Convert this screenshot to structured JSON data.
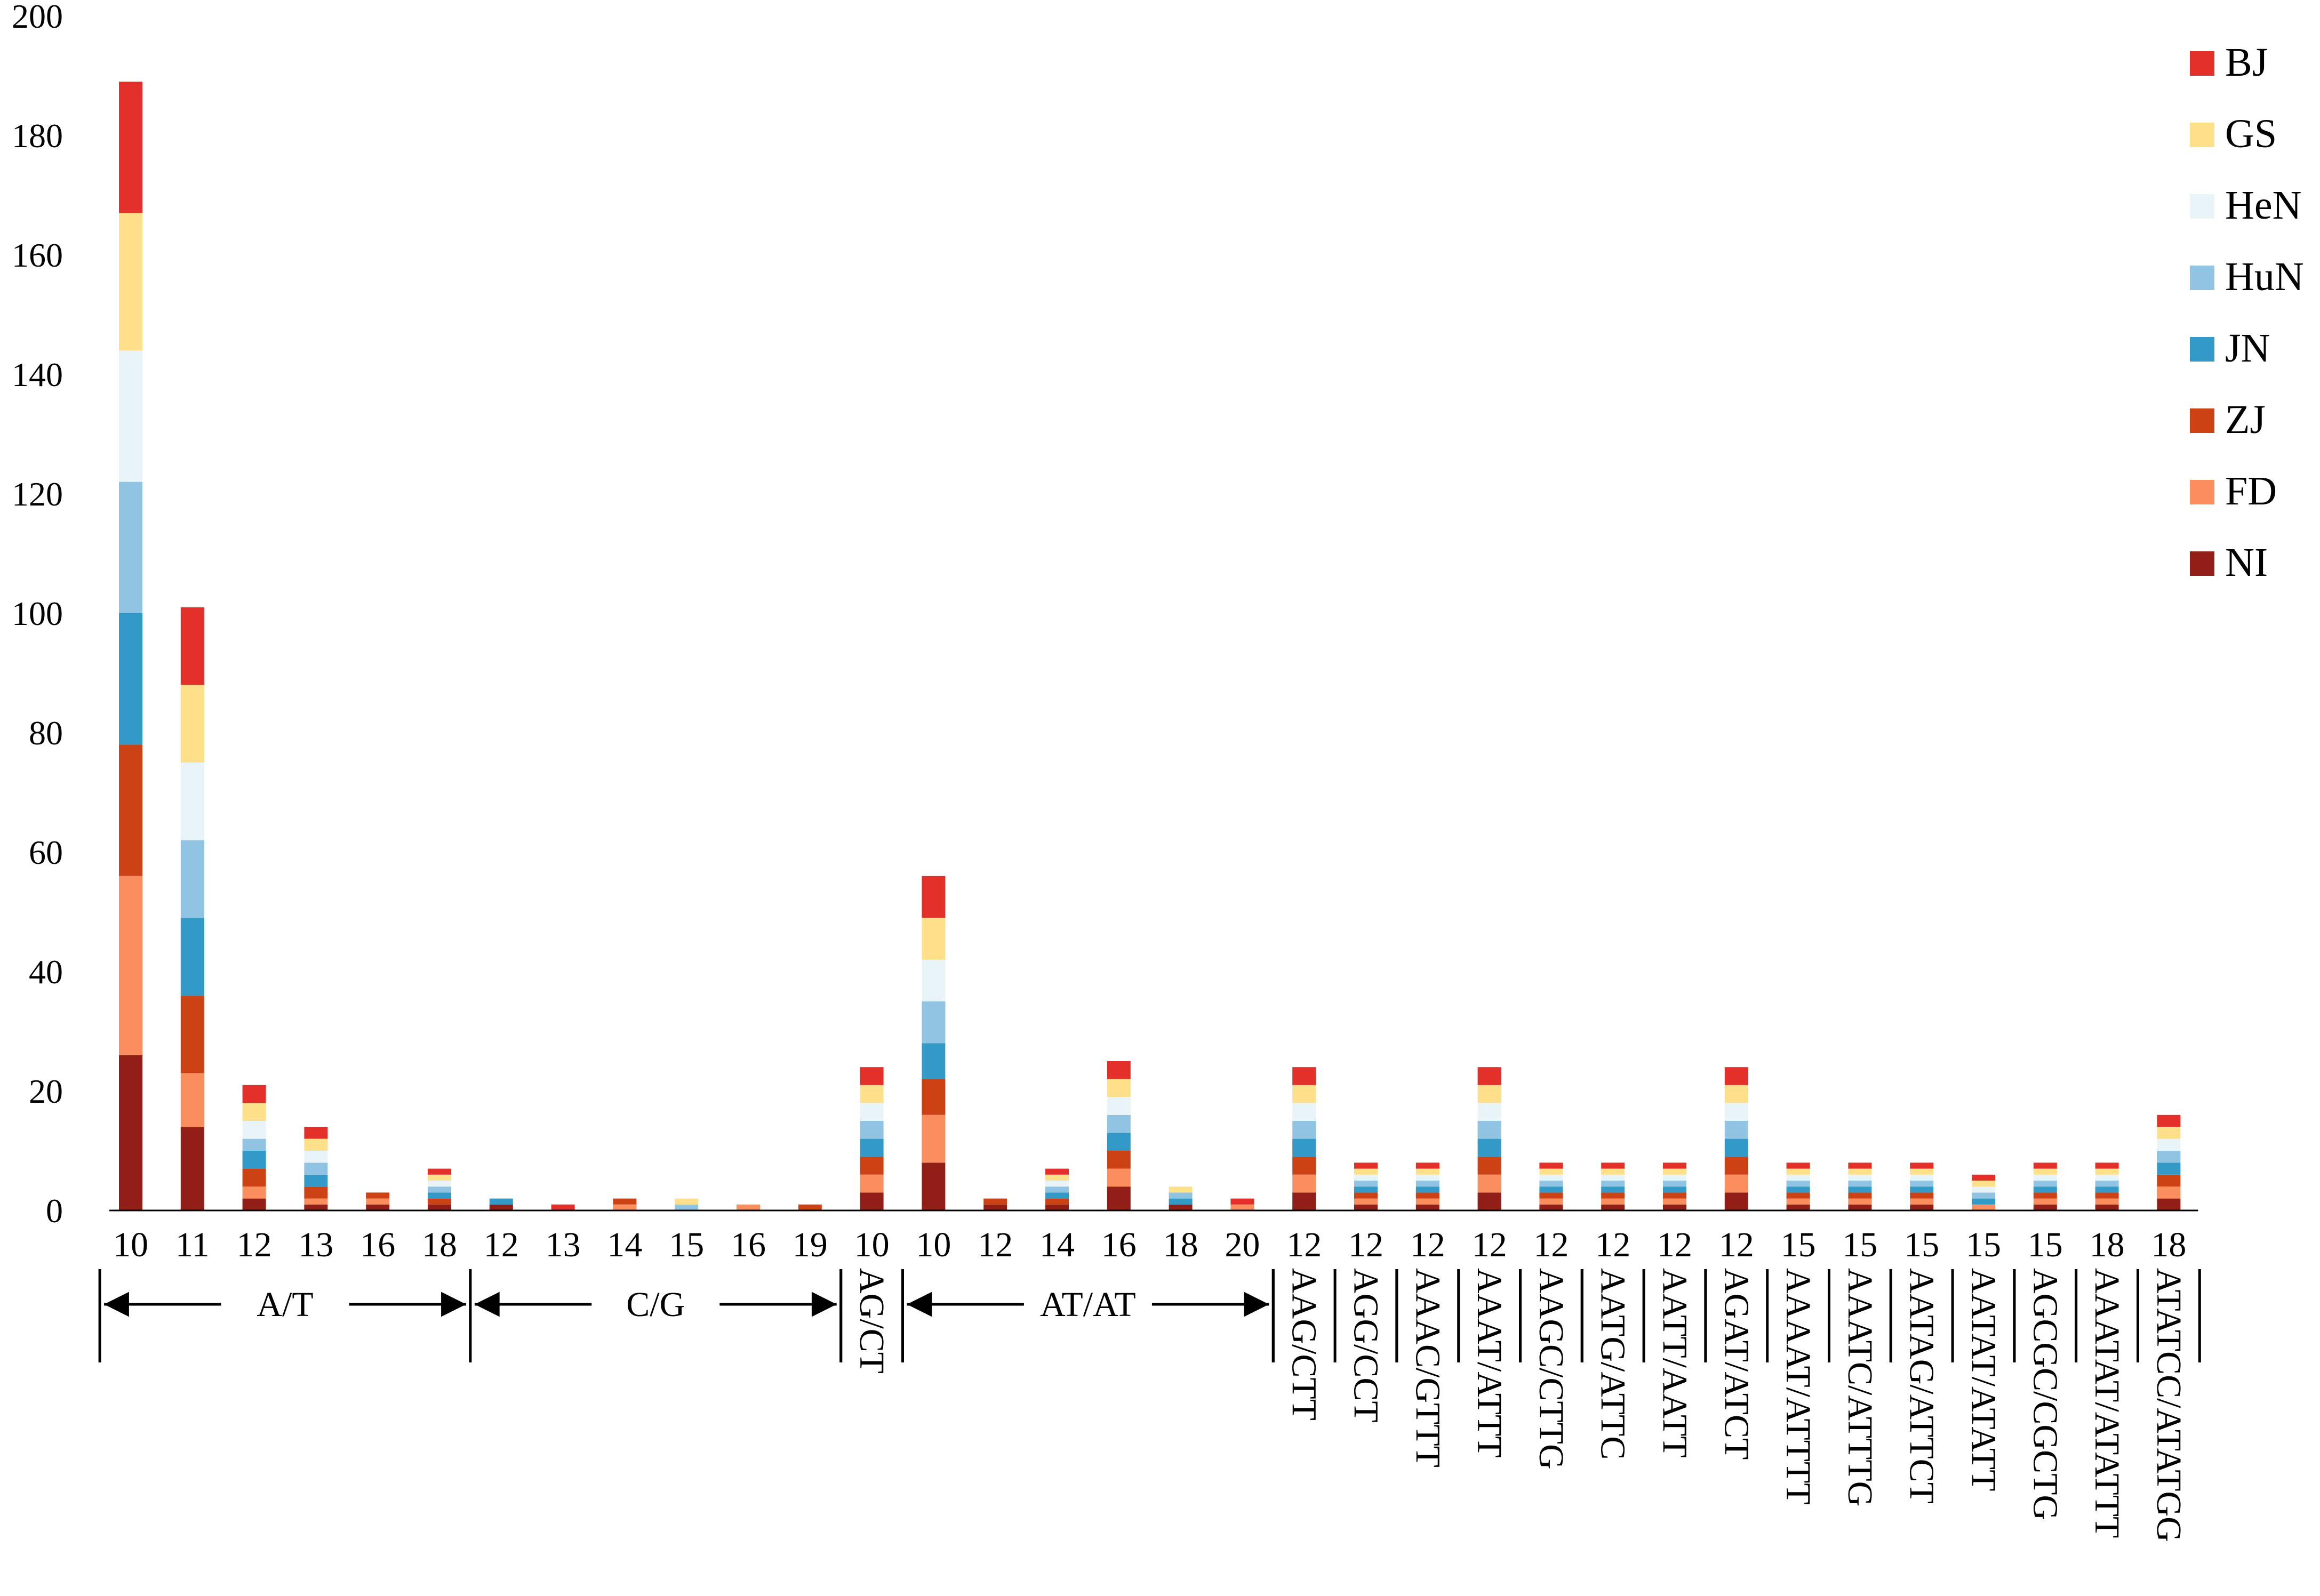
{
  "chart_data": {
    "type": "bar",
    "stacked": true,
    "title": "",
    "xlabel": "",
    "ylabel": "",
    "ylim": [
      0,
      200
    ],
    "yticks": [
      "0",
      "20",
      "40",
      "60",
      "80",
      "100",
      "120",
      "140",
      "160",
      "180",
      "200"
    ],
    "grid": false,
    "legend_position": "top-right",
    "categories": [
      "10",
      "11",
      "12",
      "13",
      "16",
      "18",
      "12",
      "13",
      "14",
      "15",
      "16",
      "19",
      "10",
      "10",
      "12",
      "14",
      "16",
      "18",
      "20",
      "12",
      "12",
      "12",
      "12",
      "12",
      "12",
      "12",
      "12",
      "15",
      "15",
      "15",
      "15",
      "15",
      "18",
      "18"
    ],
    "series": [
      {
        "name": "BJ",
        "color": "#E3302A",
        "values": [
          22,
          13,
          3,
          2,
          0,
          1,
          0,
          1,
          0,
          0,
          0,
          0,
          3,
          7,
          0,
          1,
          3,
          0,
          1,
          3,
          1,
          1,
          3,
          1,
          1,
          1,
          3,
          1,
          1,
          1,
          1,
          1,
          1,
          2
        ]
      },
      {
        "name": "GS",
        "color": "#FEE08B",
        "values": [
          23,
          13,
          3,
          2,
          0,
          1,
          0,
          0,
          0,
          1,
          0,
          0,
          3,
          7,
          0,
          1,
          3,
          1,
          0,
          3,
          1,
          1,
          3,
          1,
          1,
          1,
          3,
          1,
          1,
          1,
          1,
          1,
          1,
          2
        ]
      },
      {
        "name": "HeN",
        "color": "#E8F4F8",
        "values": [
          22,
          13,
          3,
          2,
          0,
          1,
          0,
          0,
          0,
          0,
          0,
          0,
          3,
          7,
          0,
          1,
          3,
          0,
          0,
          3,
          1,
          1,
          3,
          1,
          1,
          1,
          3,
          1,
          1,
          1,
          1,
          1,
          1,
          2
        ]
      },
      {
        "name": "HuN",
        "color": "#91C3E3",
        "values": [
          22,
          13,
          2,
          2,
          0,
          1,
          0,
          0,
          0,
          1,
          0,
          0,
          3,
          7,
          0,
          1,
          3,
          1,
          0,
          3,
          1,
          1,
          3,
          1,
          1,
          1,
          3,
          1,
          1,
          1,
          1,
          1,
          1,
          2
        ]
      },
      {
        "name": "JN",
        "color": "#3399C7",
        "values": [
          22,
          13,
          3,
          2,
          0,
          1,
          1,
          0,
          0,
          0,
          0,
          0,
          3,
          6,
          0,
          1,
          3,
          1,
          0,
          3,
          1,
          1,
          3,
          1,
          1,
          1,
          3,
          1,
          1,
          1,
          1,
          1,
          1,
          2
        ]
      },
      {
        "name": "ZJ",
        "color": "#CC4214",
        "values": [
          22,
          13,
          3,
          2,
          1,
          1,
          0,
          0,
          1,
          0,
          0,
          1,
          3,
          6,
          1,
          1,
          3,
          0,
          0,
          3,
          1,
          1,
          3,
          1,
          1,
          1,
          3,
          1,
          1,
          1,
          0,
          1,
          1,
          2
        ]
      },
      {
        "name": "FD",
        "color": "#FA8E5E",
        "values": [
          30,
          9,
          2,
          1,
          1,
          0,
          0,
          0,
          1,
          0,
          1,
          0,
          3,
          8,
          0,
          0,
          3,
          0,
          1,
          3,
          1,
          1,
          3,
          1,
          1,
          1,
          3,
          1,
          1,
          1,
          1,
          1,
          1,
          2
        ]
      },
      {
        "name": "NI",
        "color": "#921F17",
        "values": [
          26,
          14,
          2,
          1,
          1,
          1,
          1,
          0,
          0,
          0,
          0,
          0,
          3,
          8,
          1,
          1,
          4,
          1,
          0,
          3,
          1,
          1,
          3,
          1,
          1,
          1,
          3,
          1,
          1,
          1,
          0,
          1,
          1,
          2
        ]
      }
    ],
    "groups": [
      {
        "label": "A/T",
        "start": 0,
        "end": 5,
        "orientation": "arrow"
      },
      {
        "label": "C/G",
        "start": 6,
        "end": 11,
        "orientation": "arrow"
      },
      {
        "label": "AG/CT",
        "start": 12,
        "end": 12,
        "orientation": "vertical"
      },
      {
        "label": "AT/AT",
        "start": 13,
        "end": 18,
        "orientation": "arrow"
      },
      {
        "label": "AAG/CTT",
        "start": 19,
        "end": 19,
        "orientation": "vertical"
      },
      {
        "label": "AGG/CCT",
        "start": 20,
        "end": 20,
        "orientation": "vertical"
      },
      {
        "label": "AAAC/GTTT",
        "start": 21,
        "end": 21,
        "orientation": "vertical"
      },
      {
        "label": "AAAT/ATTT",
        "start": 22,
        "end": 22,
        "orientation": "vertical"
      },
      {
        "label": "AAGC/CTTG",
        "start": 23,
        "end": 23,
        "orientation": "vertical"
      },
      {
        "label": "AATG/ATTC",
        "start": 24,
        "end": 24,
        "orientation": "vertical"
      },
      {
        "label": "AATT/AATT",
        "start": 25,
        "end": 25,
        "orientation": "vertical"
      },
      {
        "label": "AGAT/ATCT",
        "start": 26,
        "end": 26,
        "orientation": "vertical"
      },
      {
        "label": "AAAAT/ATTTT",
        "start": 27,
        "end": 27,
        "orientation": "vertical"
      },
      {
        "label": "AAATC/ATTTG",
        "start": 28,
        "end": 28,
        "orientation": "vertical"
      },
      {
        "label": "AATAG/ATTCT",
        "start": 29,
        "end": 29,
        "orientation": "vertical"
      },
      {
        "label": "AATAT/ATATT",
        "start": 30,
        "end": 30,
        "orientation": "vertical"
      },
      {
        "label": "AGCGC/CGCTG",
        "start": 31,
        "end": 31,
        "orientation": "vertical"
      },
      {
        "label": "AAATAT/ATATTT",
        "start": 32,
        "end": 32,
        "orientation": "vertical"
      },
      {
        "label": "ATATCC/ATATGG",
        "start": 33,
        "end": 33,
        "orientation": "vertical"
      }
    ]
  }
}
